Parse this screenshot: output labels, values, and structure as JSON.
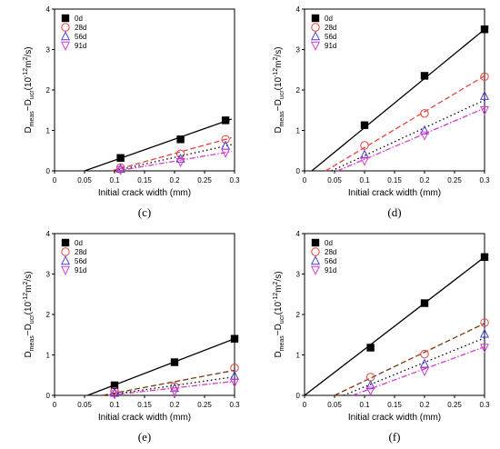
{
  "series_style": [
    {
      "marker": "square",
      "color": "#000000",
      "dash": ""
    },
    {
      "marker": "circle",
      "color": "#e8423c",
      "dash": "6,3"
    },
    {
      "marker": "triangle",
      "color": "#4a3fd6",
      "dash": "1.5,3"
    },
    {
      "marker": "triangle-down",
      "color": "#d63ad1",
      "dash": "6,2,1.5,2"
    }
  ],
  "chart_data": [
    {
      "type": "scatter",
      "caption": "(c)",
      "xlabel": "Initial crack width (mm)",
      "ylabel": "D_meas−D_ucr(10^-12m^2/s)",
      "xlim": [
        0,
        0.3
      ],
      "ylim": [
        0,
        4
      ],
      "xticks": [
        "0",
        "0.05",
        "0.1",
        "0.15",
        "0.2",
        "0.25",
        "0.3"
      ],
      "yticks": [
        "0",
        "1",
        "2",
        "3",
        "4"
      ],
      "legend": "top-left",
      "series": [
        {
          "name": "0d",
          "x": [
            0.11,
            0.21,
            0.285
          ],
          "y": [
            0.32,
            0.78,
            1.25
          ],
          "fit": [
            [
              0.05,
              0
            ],
            [
              0.295,
              1.28
            ]
          ],
          "line_color": "#000000"
        },
        {
          "name": "28d",
          "x": [
            0.11,
            0.21,
            0.285
          ],
          "y": [
            0.08,
            0.42,
            0.78
          ],
          "fit": [
            [
              0.095,
              0
            ],
            [
              0.295,
              0.82
            ]
          ],
          "line_color": "#e8423c"
        },
        {
          "name": "56d",
          "x": [
            0.11,
            0.21,
            0.285
          ],
          "y": [
            0.05,
            0.3,
            0.62
          ],
          "fit": [
            [
              0.1,
              0
            ],
            [
              0.295,
              0.65
            ]
          ],
          "line_color": "#000000"
        },
        {
          "name": "91d",
          "x": [
            0.11,
            0.21,
            0.285
          ],
          "y": [
            0.02,
            0.22,
            0.45
          ],
          "fit": [
            [
              0.105,
              0
            ],
            [
              0.295,
              0.48
            ]
          ],
          "line_color": "#d63ad1"
        }
      ]
    },
    {
      "type": "scatter",
      "caption": "(d)",
      "xlabel": "Initial crack width (mm)",
      "ylabel": "D_meas−D_ucr(10^-12m^2/s)",
      "xlim": [
        0,
        0.3
      ],
      "ylim": [
        0,
        4
      ],
      "xticks": [
        "0",
        "0.05",
        "0.1",
        "0.15",
        "0.2",
        "0.25",
        "0.3"
      ],
      "yticks": [
        "0",
        "1",
        "2",
        "3",
        "4"
      ],
      "legend": "top-left",
      "series": [
        {
          "name": "0d",
          "x": [
            0.1,
            0.2,
            0.3
          ],
          "y": [
            1.13,
            2.35,
            3.5
          ],
          "fit": [
            [
              0.012,
              0
            ],
            [
              0.3,
              3.5
            ]
          ],
          "line_color": "#000000"
        },
        {
          "name": "28d",
          "x": [
            0.1,
            0.2,
            0.3
          ],
          "y": [
            0.63,
            1.42,
            2.33
          ],
          "fit": [
            [
              0.035,
              0
            ],
            [
              0.3,
              2.35
            ]
          ],
          "line_color": "#e8423c"
        },
        {
          "name": "56d",
          "x": [
            0.1,
            0.2,
            0.3
          ],
          "y": [
            0.4,
            1.0,
            1.85
          ],
          "fit": [
            [
              0.045,
              0
            ],
            [
              0.3,
              1.75
            ]
          ],
          "line_color": "#000000"
        },
        {
          "name": "91d",
          "x": [
            0.1,
            0.2,
            0.3
          ],
          "y": [
            0.25,
            0.88,
            1.5
          ],
          "fit": [
            [
              0.055,
              0
            ],
            [
              0.3,
              1.55
            ]
          ],
          "line_color": "#d63ad1"
        }
      ]
    },
    {
      "type": "scatter",
      "caption": "(e)",
      "xlabel": "Initial crack width (mm)",
      "ylabel": "D_meas−D_ucr(10^-12m^2/s)",
      "xlim": [
        0,
        0.3
      ],
      "ylim": [
        0,
        4
      ],
      "xticks": [
        "0",
        "0.05",
        "0.1",
        "0.15",
        "0.2",
        "0.25",
        "0.3"
      ],
      "yticks": [
        "0",
        "1",
        "2",
        "3",
        "4"
      ],
      "legend": "top-left",
      "series": [
        {
          "name": "0d",
          "x": [
            0.1,
            0.2,
            0.3
          ],
          "y": [
            0.25,
            0.82,
            1.4
          ],
          "fit": [
            [
              0.055,
              0
            ],
            [
              0.3,
              1.4
            ]
          ],
          "line_color": "#000000"
        },
        {
          "name": "28d",
          "x": [
            0.1,
            0.2,
            0.3
          ],
          "y": [
            0.1,
            0.22,
            0.68
          ],
          "fit": [
            [
              0.08,
              0
            ],
            [
              0.3,
              0.62
            ]
          ],
          "line_color": "#7a3a12"
        },
        {
          "name": "56d",
          "x": [
            0.1,
            0.2,
            0.3
          ],
          "y": [
            0.06,
            0.18,
            0.48
          ],
          "fit": [
            [
              0.085,
              0
            ],
            [
              0.3,
              0.46
            ]
          ],
          "line_color": "#000000"
        },
        {
          "name": "91d",
          "x": [
            0.1,
            0.2,
            0.3
          ],
          "y": [
            0.03,
            0.1,
            0.32
          ],
          "fit": [
            [
              0.09,
              0
            ],
            [
              0.3,
              0.35
            ]
          ],
          "line_color": "#d63ad1"
        }
      ]
    },
    {
      "type": "scatter",
      "caption": "(f)",
      "xlabel": "Initial crack width (mm)",
      "ylabel": "D_meas−D_ucr(10^-12m^2/s)",
      "xlim": [
        0,
        0.3
      ],
      "ylim": [
        0,
        4
      ],
      "xticks": [
        "0",
        "0.05",
        "0.1",
        "0.15",
        "0.2",
        "0.25",
        "0.3"
      ],
      "yticks": [
        "0",
        "1",
        "2",
        "3",
        "4"
      ],
      "legend": "top-left",
      "series": [
        {
          "name": "0d",
          "x": [
            0.11,
            0.2,
            0.3
          ],
          "y": [
            1.18,
            2.28,
            3.42
          ],
          "fit": [
            [
              0.0,
              0
            ],
            [
              0.3,
              3.42
            ]
          ],
          "line_color": "#000000"
        },
        {
          "name": "28d",
          "x": [
            0.11,
            0.2,
            0.3
          ],
          "y": [
            0.45,
            1.02,
            1.8
          ],
          "fit": [
            [
              0.05,
              0
            ],
            [
              0.3,
              1.78
            ]
          ],
          "line_color": "#7a3a12"
        },
        {
          "name": "56d",
          "x": [
            0.11,
            0.2,
            0.3
          ],
          "y": [
            0.25,
            0.78,
            1.52
          ],
          "fit": [
            [
              0.065,
              0
            ],
            [
              0.3,
              1.42
            ]
          ],
          "line_color": "#000000"
        },
        {
          "name": "91d",
          "x": [
            0.11,
            0.2,
            0.3
          ],
          "y": [
            0.12,
            0.6,
            1.18
          ],
          "fit": [
            [
              0.08,
              0
            ],
            [
              0.3,
              1.2
            ]
          ],
          "line_color": "#d63ad1"
        }
      ]
    }
  ]
}
